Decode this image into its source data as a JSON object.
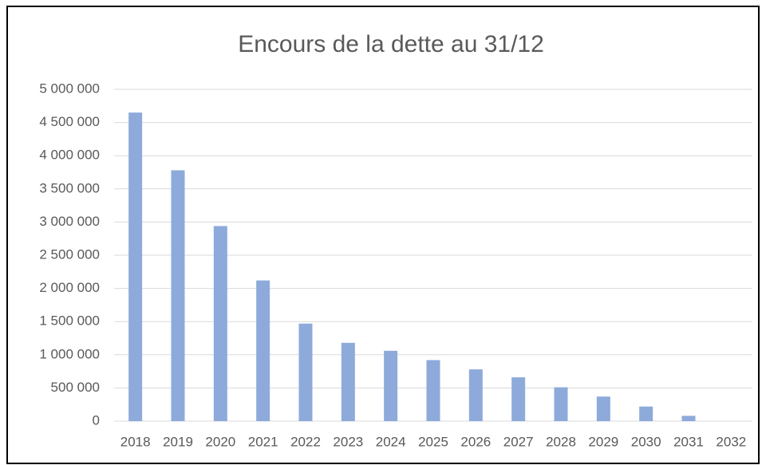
{
  "chart_data": {
    "type": "bar",
    "title": "Encours de la dette au 31/12",
    "categories": [
      "2018",
      "2019",
      "2020",
      "2021",
      "2022",
      "2023",
      "2024",
      "2025",
      "2026",
      "2027",
      "2028",
      "2029",
      "2030",
      "2031",
      "2032"
    ],
    "values": [
      4650000,
      3780000,
      2940000,
      2120000,
      1470000,
      1180000,
      1060000,
      920000,
      780000,
      660000,
      510000,
      370000,
      220000,
      80000,
      0
    ],
    "color": "#8eaadb",
    "ylim": [
      0,
      5000000
    ],
    "yticks": [
      0,
      {
        "value": 500000,
        "label": "500 000"
      },
      {
        "value": 1000000,
        "label": "1 000 000"
      },
      {
        "value": 1500000,
        "label": "1 500 000"
      },
      {
        "value": 2000000,
        "label": "2 000 000"
      },
      {
        "value": 2500000,
        "label": "2 500 000"
      },
      {
        "value": 3000000,
        "label": "3 000 000"
      },
      {
        "value": 3500000,
        "label": "3 500 000"
      },
      {
        "value": 4000000,
        "label": "4 000 000"
      },
      {
        "value": 4500000,
        "label": "4 500 000"
      },
      {
        "value": 5000000,
        "label": "5 000 000"
      }
    ],
    "grid": true
  }
}
